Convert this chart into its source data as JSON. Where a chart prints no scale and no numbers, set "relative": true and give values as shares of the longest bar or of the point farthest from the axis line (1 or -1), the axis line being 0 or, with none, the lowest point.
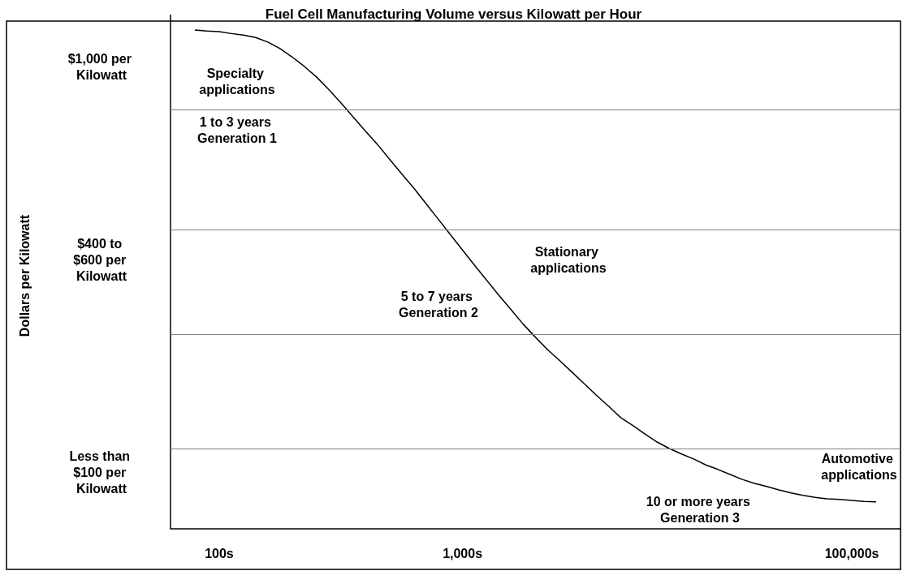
{
  "chart_data": {
    "type": "line",
    "relative": true,
    "title": "Fuel Cell Manufacturing Volume versus Kilowatt per Hour",
    "categories": [
      null,
      null,
      null,
      null,
      "100s",
      null,
      null,
      null,
      null,
      null,
      null,
      null,
      null,
      null,
      null,
      null,
      null,
      null,
      null,
      null,
      null,
      null,
      null,
      null,
      "1,000s",
      null,
      null,
      null,
      null,
      null,
      null,
      null,
      null,
      null,
      null,
      null,
      null,
      null,
      null,
      null,
      null,
      null,
      null,
      null,
      null,
      null,
      null,
      null,
      null,
      null,
      null,
      null,
      null,
      null,
      null,
      null,
      "100,000s",
      null,
      null,
      null,
      null
    ],
    "series": [
      {
        "color": "#000000",
        "values": [
          null,
          null,
          1.0,
          0.998,
          0.997,
          0.993,
          0.99,
          0.985,
          0.976,
          0.963,
          0.946,
          0.927,
          0.906,
          0.881,
          0.854,
          0.826,
          0.798,
          0.771,
          0.741,
          0.712,
          0.683,
          0.652,
          0.621,
          0.59,
          0.559,
          0.528,
          0.498,
          0.468,
          0.439,
          0.41,
          0.384,
          0.359,
          0.337,
          0.314,
          0.291,
          0.268,
          0.246,
          0.223,
          0.207,
          0.19,
          0.174,
          0.161,
          0.15,
          0.14,
          0.128,
          0.119,
          0.109,
          0.099,
          0.091,
          0.085,
          0.078,
          0.072,
          0.067,
          0.063,
          0.06,
          0.059,
          0.057,
          0.055,
          0.054,
          null,
          null
        ]
      }
    ],
    "ref_lines": [
      {
        "axis": "y",
        "value": 0.84,
        "color": "#808080"
      },
      {
        "axis": "y",
        "value": 0.6,
        "color": "#808080"
      },
      {
        "axis": "y",
        "value": 0.39,
        "color": "#808080"
      },
      {
        "axis": "y",
        "value": 0.16,
        "color": "#808080"
      }
    ],
    "annotations": [
      "$1,000 per Kilowatt",
      "$400 to $600 per Kilowatt",
      "Less than $100 per Kilowatt",
      "Specialty applications",
      "1 to 3 years Generation 1",
      "Stationary applications",
      "5 to 7 years Generation 2",
      "10 or more years Generation 3",
      "Automotive applications",
      "Dollars per Kilowatt"
    ]
  }
}
